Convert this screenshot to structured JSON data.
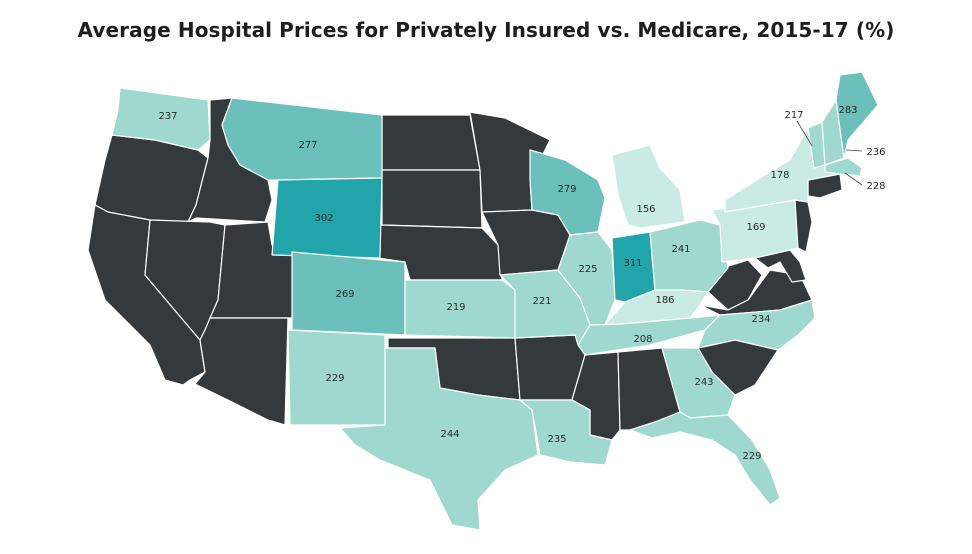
{
  "title": "Average Hospital Prices for Privately Insured vs. Medicare, 2015-17 (%)",
  "colors": {
    "no_data": "#33393d",
    "tier_150_199": "#c9ebe4",
    "tier_200_249": "#9fd8cf",
    "tier_250_299": "#6cc0bb",
    "tier_300_plus": "#21a5ab"
  },
  "states": {
    "WA": "237",
    "MT": "277",
    "WY": "302",
    "CO": "269",
    "NM": "229",
    "KS": "219",
    "TX": "244",
    "MO": "221",
    "LA": "235",
    "WI": "279",
    "IL": "225",
    "MI": "156",
    "IN": "311",
    "OH": "241",
    "KY": "186",
    "TN": "208",
    "GA": "243",
    "FL": "229",
    "NC": "234",
    "PA": "169",
    "NY": "178",
    "VT": "217",
    "ME": "283",
    "NH": "236",
    "MA": "228"
  }
}
